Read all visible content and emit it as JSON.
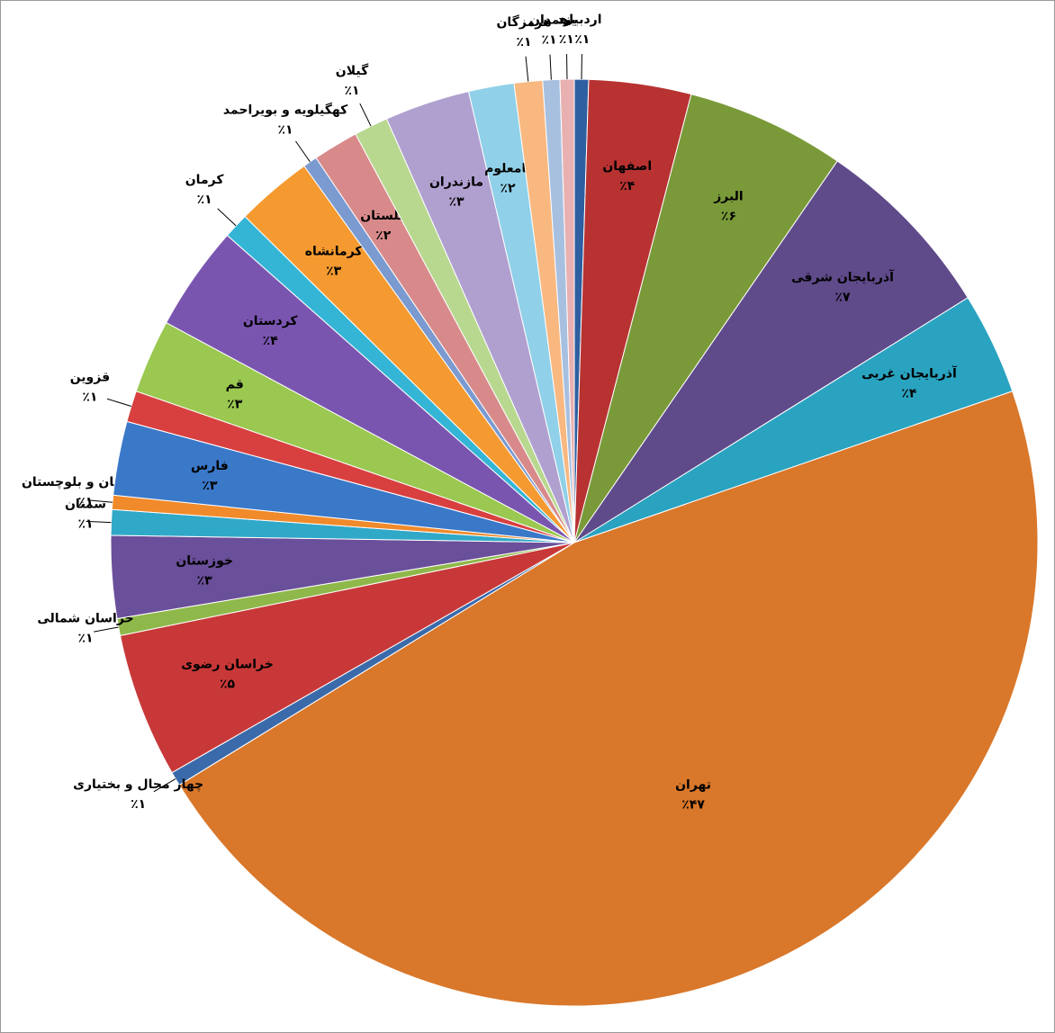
{
  "chart_data": {
    "type": "pie",
    "categories": [
      "اردبیل",
      "اصفهان",
      "البرز",
      "آذربایجان شرقی",
      "آذربایجان غربی",
      "تهران",
      "چهار محال و بختیاری",
      "خراسان رضوی",
      "خراسان شمالی",
      "خوزستان",
      "سمنان",
      "سیستان و بلوچستان",
      "فارس",
      "قزوین",
      "قم",
      "کردستان",
      "کرمان",
      "کرمانشاه",
      "کهگیلویه و بویراحمد",
      "گلستان",
      "گیلان",
      "مازندران",
      "نامعلوم",
      "هرمزگان",
      "همدان",
      "یزد"
    ],
    "values": [
      0.5,
      3.6,
      5.6,
      6.6,
      3.6,
      47,
      0.5,
      5.1,
      0.6,
      2.9,
      0.9,
      0.5,
      2.6,
      1.1,
      2.6,
      3.7,
      0.9,
      2.7,
      0.5,
      1.6,
      1.2,
      3.0,
      1.6,
      1.0,
      0.6,
      0.5
    ],
    "value_labels": [
      "٪۱",
      "٪۴",
      "٪۶",
      "٪۷",
      "٪۴",
      "٪۴۷",
      "٪۱",
      "٪۵",
      "٪۱",
      "٪۳",
      "٪۱",
      "٪۱",
      "٪۳",
      "٪۱",
      "٪۳",
      "٪۴",
      "٪۱",
      "٪۳",
      "٪۱",
      "٪۲",
      "٪۱",
      "٪۳",
      "٪۲",
      "٪۱",
      "٪۱",
      "٪۱"
    ],
    "colors": [
      "#2e5fa0",
      "#b83232",
      "#7a9a3a",
      "#5f4a8a",
      "#2aa3c0",
      "#d9772a",
      "#3a6aaa",
      "#c83838",
      "#8fb84a",
      "#6a4f9a",
      "#30a8c8",
      "#f08a2a",
      "#3a78c8",
      "#d84040",
      "#9ac850",
      "#7a55b0",
      "#35b5d5",
      "#f59a30",
      "#7a9ad0",
      "#d88a8a",
      "#b8d890",
      "#b0a0d0",
      "#90d0e8",
      "#f8b880",
      "#a8c0e0",
      "#e8b0b0"
    ]
  }
}
